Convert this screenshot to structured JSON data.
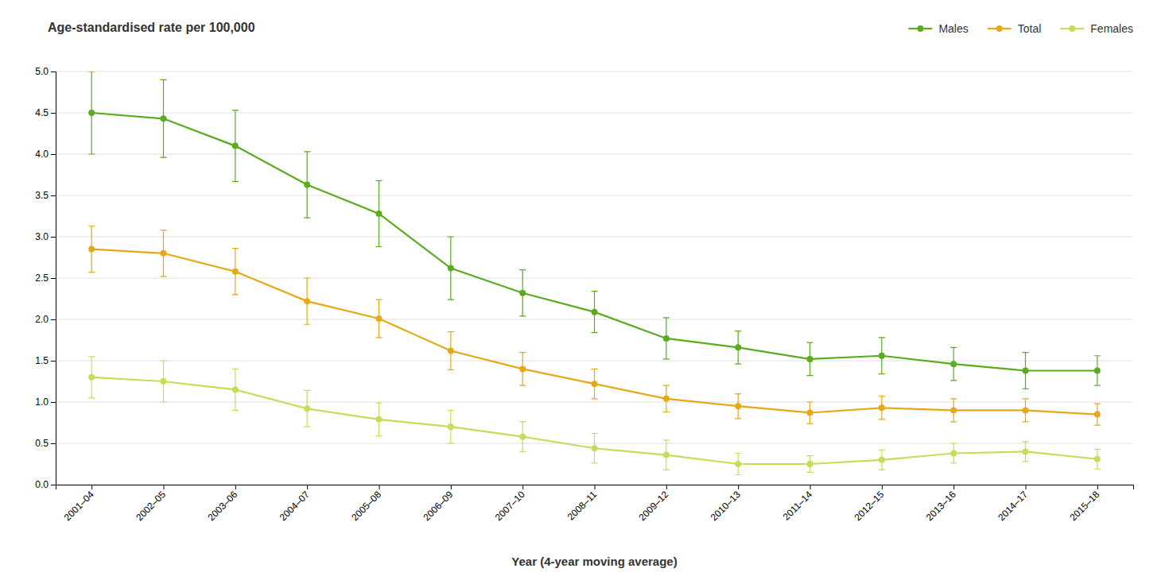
{
  "chart_data": {
    "type": "line",
    "title": "Age-standardised rate per 100,000",
    "x_label": "Year (4-year moving average)",
    "categories": [
      "2001–04",
      "2002–05",
      "2003–06",
      "2004–07",
      "2005–08",
      "2006–09",
      "2007–10",
      "2008–11",
      "2009–12",
      "2010–13",
      "2011–14",
      "2012–15",
      "2013–16",
      "2014–17",
      "2015–18"
    ],
    "series": [
      {
        "name": "Males",
        "color": "#5aab1e",
        "values": [
          4.5,
          4.43,
          4.1,
          3.63,
          3.28,
          2.62,
          2.32,
          2.09,
          1.77,
          1.66,
          1.52,
          1.56,
          1.46,
          1.38,
          1.38
        ],
        "error_upper": [
          0.5,
          0.47,
          0.43,
          0.4,
          0.4,
          0.38,
          0.28,
          0.25,
          0.25,
          0.2,
          0.2,
          0.22,
          0.2,
          0.22,
          0.18
        ],
        "error_lower": [
          0.5,
          0.47,
          0.43,
          0.4,
          0.4,
          0.38,
          0.28,
          0.25,
          0.25,
          0.2,
          0.2,
          0.22,
          0.2,
          0.22,
          0.18
        ]
      },
      {
        "name": "Total",
        "color": "#e6a817",
        "values": [
          2.85,
          2.8,
          2.58,
          2.22,
          2.01,
          1.62,
          1.4,
          1.22,
          1.04,
          0.95,
          0.87,
          0.93,
          0.9,
          0.9,
          0.85
        ],
        "error_upper": [
          0.28,
          0.28,
          0.28,
          0.28,
          0.23,
          0.23,
          0.2,
          0.18,
          0.16,
          0.15,
          0.13,
          0.14,
          0.14,
          0.14,
          0.13
        ],
        "error_lower": [
          0.28,
          0.28,
          0.28,
          0.28,
          0.23,
          0.23,
          0.2,
          0.18,
          0.16,
          0.15,
          0.13,
          0.14,
          0.14,
          0.14,
          0.13
        ]
      },
      {
        "name": "Females",
        "color": "#c8dc5a",
        "values": [
          1.3,
          1.25,
          1.15,
          0.92,
          0.79,
          0.7,
          0.58,
          0.44,
          0.36,
          0.25,
          0.25,
          0.3,
          0.38,
          0.4,
          0.31
        ],
        "error_upper": [
          0.25,
          0.25,
          0.25,
          0.22,
          0.2,
          0.2,
          0.18,
          0.18,
          0.18,
          0.13,
          0.1,
          0.12,
          0.12,
          0.12,
          0.12
        ],
        "error_lower": [
          0.25,
          0.25,
          0.25,
          0.22,
          0.2,
          0.2,
          0.18,
          0.18,
          0.18,
          0.13,
          0.1,
          0.12,
          0.12,
          0.12,
          0.12
        ]
      }
    ],
    "ylim": [
      0.0,
      5.0
    ],
    "yticks": [
      {
        "value": 0,
        "label": "0.0"
      },
      0.5,
      {
        "value": 1,
        "label": "1.0"
      },
      1.5,
      {
        "value": 2,
        "label": "2.0"
      },
      2.5,
      {
        "value": 3,
        "label": "3.0"
      },
      3.5,
      {
        "value": 4,
        "label": "4.0"
      },
      4.5,
      {
        "value": 5,
        "label": "5.0"
      }
    ],
    "grid": true,
    "legend": "top-right",
    "marker": "circle",
    "line_style": "solid"
  }
}
